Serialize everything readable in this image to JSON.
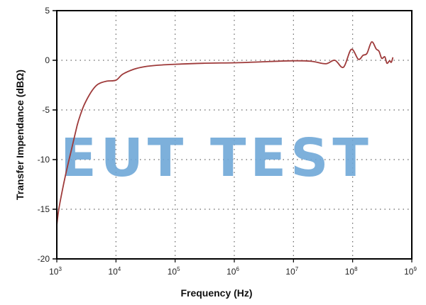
{
  "chart_data": {
    "type": "line",
    "title": "",
    "xlabel": "Frequency (Hz)",
    "ylabel": "Transfer Impendance (dBΩ)",
    "xscale": "log",
    "xlim": [
      1000,
      1000000000
    ],
    "ylim": [
      -20,
      5
    ],
    "x_ticks": [
      {
        "base": "10",
        "exp": "3",
        "value": 1000
      },
      {
        "base": "10",
        "exp": "4",
        "value": 10000
      },
      {
        "base": "10",
        "exp": "5",
        "value": 100000
      },
      {
        "base": "10",
        "exp": "6",
        "value": 1000000
      },
      {
        "base": "10",
        "exp": "7",
        "value": 10000000
      },
      {
        "base": "10",
        "exp": "8",
        "value": 100000000
      },
      {
        "base": "10",
        "exp": "9",
        "value": 1000000000
      }
    ],
    "y_ticks": [
      5,
      0,
      -5,
      -10,
      -15,
      -20
    ],
    "grid": "dotted",
    "series": [
      {
        "name": "Transfer Impedance",
        "color": "#9e3a3a",
        "points": [
          [
            1000,
            -16.6
          ],
          [
            1080,
            -15.0
          ],
          [
            1300,
            -12.5
          ],
          [
            1500,
            -10.8
          ],
          [
            1800,
            -8.8
          ],
          [
            2200,
            -6.6
          ],
          [
            2500,
            -5.5
          ],
          [
            3000,
            -4.3
          ],
          [
            4000,
            -3.0
          ],
          [
            5000,
            -2.4
          ],
          [
            7000,
            -2.1
          ],
          [
            10000,
            -2.0
          ],
          [
            13000,
            -1.4
          ],
          [
            20000,
            -0.9
          ],
          [
            30000,
            -0.65
          ],
          [
            50000,
            -0.5
          ],
          [
            100000,
            -0.4
          ],
          [
            300000,
            -0.3
          ],
          [
            1000000,
            -0.25
          ],
          [
            3000000,
            -0.15
          ],
          [
            10000000,
            -0.05
          ],
          [
            20000000,
            -0.1
          ],
          [
            35000000,
            -0.35
          ],
          [
            50000000,
            0.0
          ],
          [
            70000000,
            -0.7
          ],
          [
            95000000,
            1.1
          ],
          [
            125000000,
            0.1
          ],
          [
            150000000,
            0.5
          ],
          [
            175000000,
            0.7
          ],
          [
            210000000,
            1.85
          ],
          [
            250000000,
            1.15
          ],
          [
            280000000,
            0.9
          ],
          [
            310000000,
            0.2
          ],
          [
            350000000,
            0.35
          ],
          [
            380000000,
            -0.3
          ],
          [
            420000000,
            -0.05
          ],
          [
            450000000,
            -0.2
          ],
          [
            480000000,
            0.3
          ]
        ]
      }
    ],
    "legend": null
  },
  "watermark": "EUT TEST"
}
